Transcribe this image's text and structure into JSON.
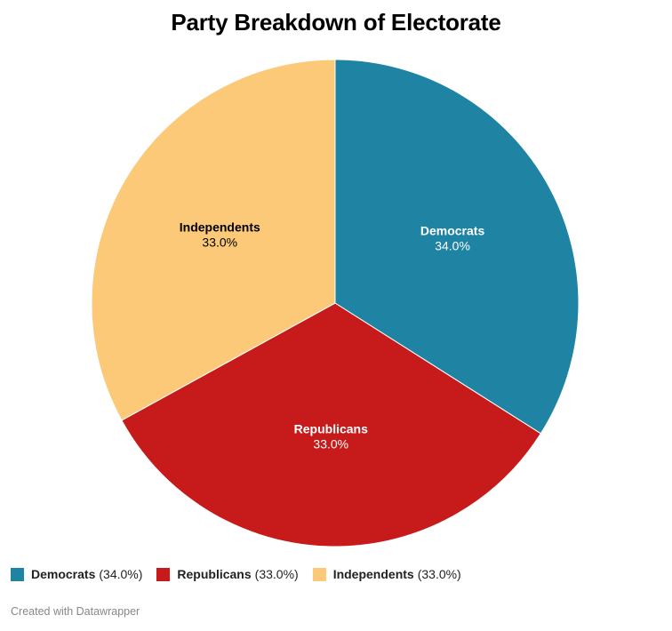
{
  "chart_data": {
    "type": "pie",
    "title": "Party Breakdown of Electorate",
    "slices": [
      {
        "label": "Democrats",
        "value": 34.0,
        "value_label": "34.0%",
        "legend_value": "(34.0%)",
        "color": "#1f83a3",
        "label_color": "#ffffff"
      },
      {
        "label": "Republicans",
        "value": 33.0,
        "value_label": "33.0%",
        "legend_value": "(33.0%)",
        "color": "#c71b1b",
        "label_color": "#ffffff"
      },
      {
        "label": "Independents",
        "value": 33.0,
        "value_label": "33.0%",
        "legend_value": "(33.0%)",
        "color": "#fcc978",
        "label_color": "#000000"
      }
    ],
    "legend_position": "bottom-left"
  },
  "footer": {
    "credit": "Created with Datawrapper"
  }
}
